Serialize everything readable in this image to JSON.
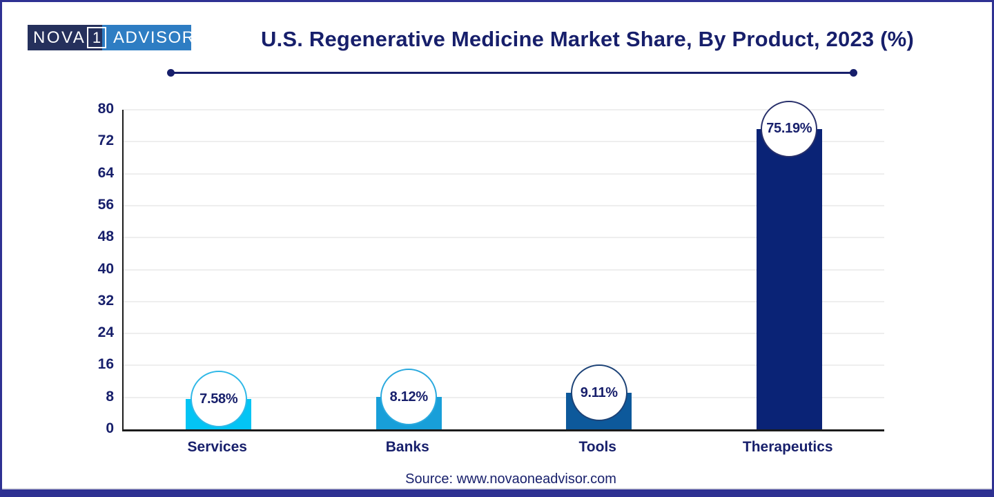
{
  "brand": {
    "logo_left": "NOVA",
    "logo_box": "1",
    "logo_right": "ADVISOR"
  },
  "header": {
    "title": "U.S. Regenerative Medicine Market Share, By Product, 2023 (%)"
  },
  "footer": {
    "source": "Source: www.novaoneadvisor.com"
  },
  "colors": {
    "frame": "#2e3192",
    "navy": "#171f6b",
    "logo-dark": "#25305c",
    "logo-blue": "#2e7dc3",
    "grid": "#eeeeee",
    "axis": "#1b1b1b",
    "strip-line": "#d9d9e2"
  },
  "chart_data": {
    "type": "bar",
    "title": "U.S. Regenerative Medicine Market Share, By Product, 2023 (%)",
    "categories": [
      "Services",
      "Banks",
      "Tools",
      "Therapeutics"
    ],
    "values": [
      7.58,
      8.12,
      9.11,
      75.19
    ],
    "value_labels": [
      "7.58%",
      "8.12%",
      "9.11%",
      "75.19%"
    ],
    "bar_colors": [
      "#03c4f4",
      "#189fd9",
      "#0d599b",
      "#0a2376"
    ],
    "badge_border_colors": [
      "#2fb8e7",
      "#2aa9de",
      "#1d4377",
      "#28306b"
    ],
    "xlabel": "",
    "ylabel": "",
    "ylim": [
      0,
      80
    ],
    "yticks": [
      0,
      8,
      16,
      24,
      32,
      40,
      48,
      56,
      64,
      72,
      80
    ],
    "grid": true,
    "legend": "none",
    "annotation_style": "circle-badge-at-bar-top"
  }
}
